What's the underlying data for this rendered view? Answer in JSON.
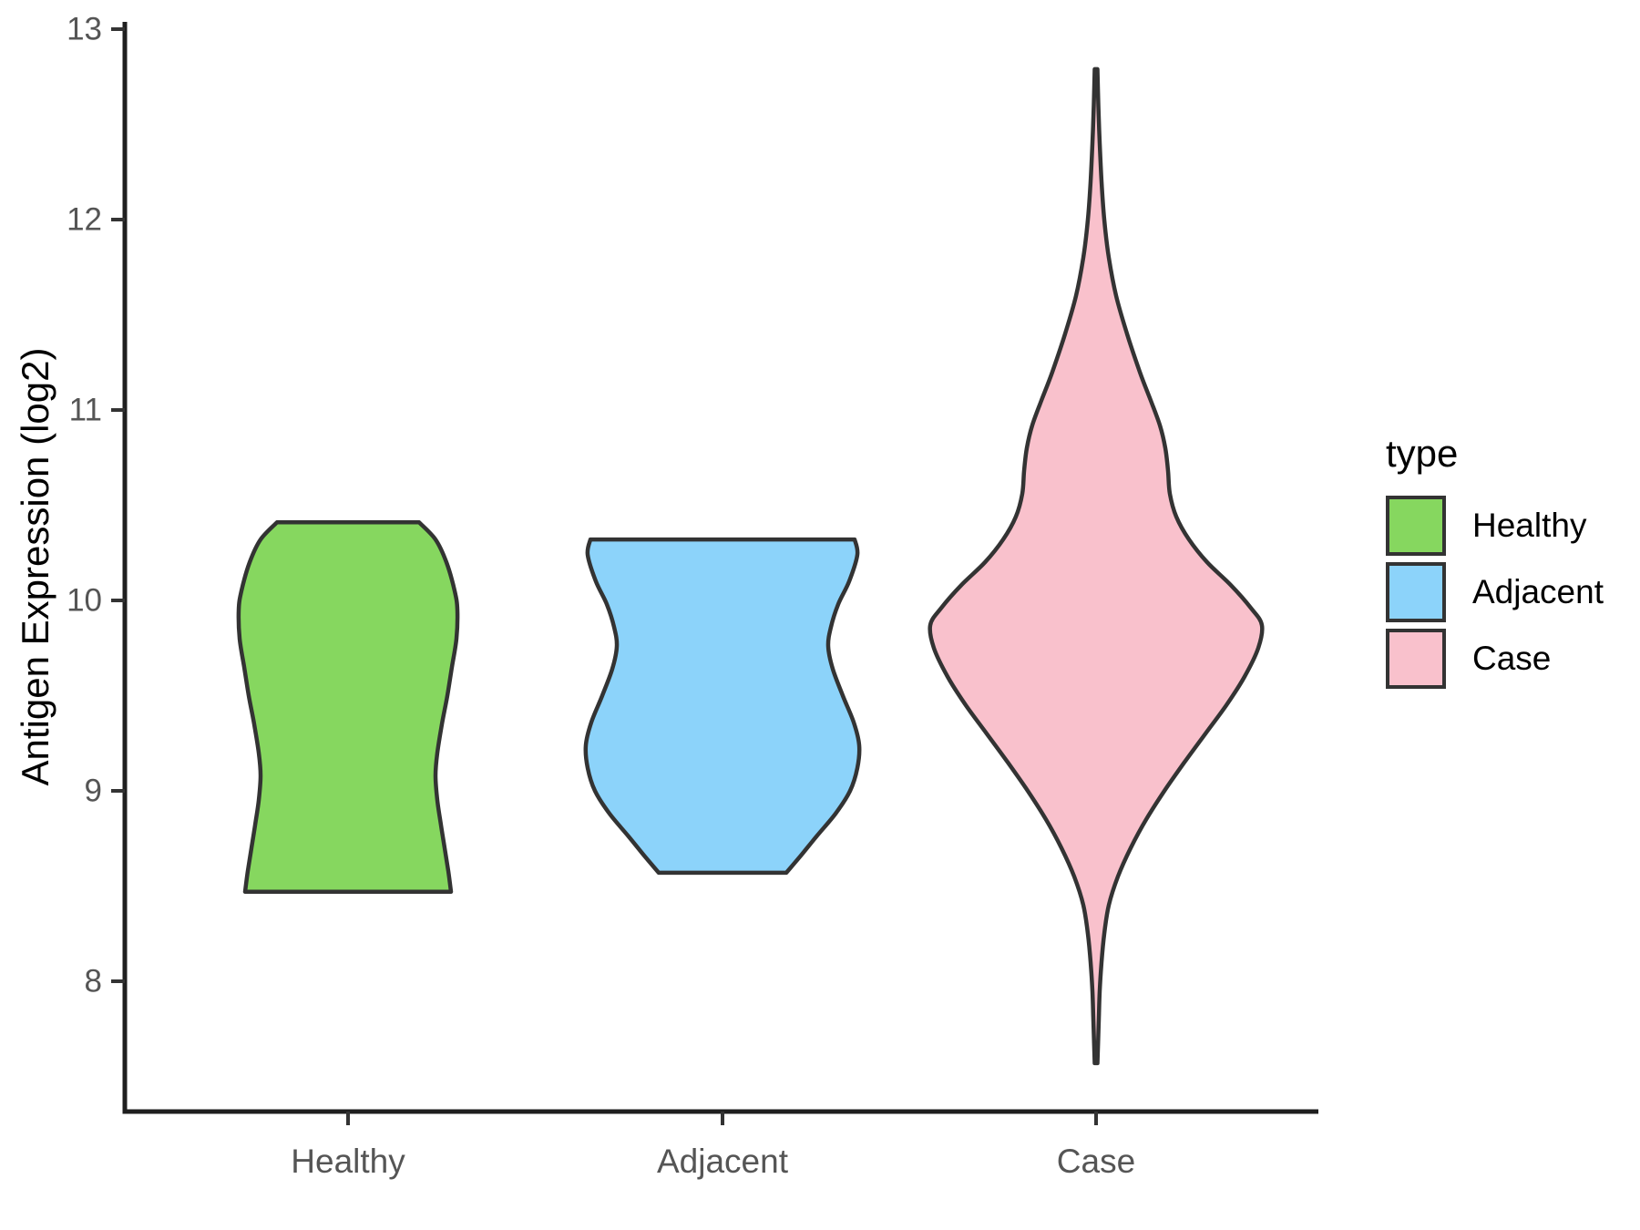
{
  "figure": {
    "background": "#ffffff"
  },
  "chart_data": {
    "type": "violin",
    "title": "",
    "xlabel": "",
    "ylabel": "Antigen Expression (log2)",
    "ylim": [
      7.3,
      13.05
    ],
    "yticks": [
      8,
      9,
      10,
      11,
      12,
      13
    ],
    "categories": [
      "Healthy",
      "Adjacent",
      "Case"
    ],
    "grid": false,
    "legend_position": "right",
    "legend_title": "type",
    "axis_color": "#1f1f1f",
    "tick_color": "#333333",
    "tick_label_color": "#555555",
    "outline_color": "#333333",
    "series": [
      {
        "name": "Healthy",
        "color": "#86D75F",
        "min": 8.47,
        "max": 10.41,
        "widest_at": 9.95,
        "profile": [
          [
            10.41,
            78
          ],
          [
            10.32,
            96
          ],
          [
            10.2,
            108
          ],
          [
            10.05,
            117
          ],
          [
            9.95,
            120
          ],
          [
            9.8,
            119
          ],
          [
            9.65,
            114
          ],
          [
            9.5,
            109
          ],
          [
            9.35,
            103
          ],
          [
            9.2,
            98
          ],
          [
            9.08,
            96
          ],
          [
            8.95,
            98
          ],
          [
            8.82,
            102
          ],
          [
            8.7,
            106
          ],
          [
            8.58,
            110
          ],
          [
            8.47,
            113
          ]
        ]
      },
      {
        "name": "Adjacent",
        "color": "#8CD3FA",
        "min": 8.57,
        "max": 10.32,
        "widest_at": 9.22,
        "profile": [
          [
            10.32,
            145
          ],
          [
            10.24,
            148
          ],
          [
            10.1,
            139
          ],
          [
            9.98,
            127
          ],
          [
            9.86,
            119
          ],
          [
            9.76,
            116
          ],
          [
            9.64,
            121
          ],
          [
            9.5,
            132
          ],
          [
            9.36,
            144
          ],
          [
            9.24,
            150
          ],
          [
            9.12,
            148
          ],
          [
            9.0,
            140
          ],
          [
            8.88,
            124
          ],
          [
            8.76,
            103
          ],
          [
            8.66,
            86
          ],
          [
            8.57,
            70
          ]
        ]
      },
      {
        "name": "Case",
        "color": "#F9C1CC",
        "min": 7.57,
        "max": 12.79,
        "widest_at": 9.87,
        "profile": [
          [
            12.79,
            1.5
          ],
          [
            12.6,
            2.5
          ],
          [
            12.4,
            4
          ],
          [
            12.2,
            6
          ],
          [
            12.0,
            9
          ],
          [
            11.8,
            14
          ],
          [
            11.6,
            22
          ],
          [
            11.4,
            34
          ],
          [
            11.2,
            48
          ],
          [
            11.05,
            60
          ],
          [
            10.92,
            70
          ],
          [
            10.8,
            76
          ],
          [
            10.68,
            79
          ],
          [
            10.56,
            81
          ],
          [
            10.44,
            88
          ],
          [
            10.32,
            102
          ],
          [
            10.2,
            122
          ],
          [
            10.08,
            148
          ],
          [
            9.96,
            170
          ],
          [
            9.87,
            182
          ],
          [
            9.75,
            178
          ],
          [
            9.6,
            163
          ],
          [
            9.45,
            143
          ],
          [
            9.3,
            120
          ],
          [
            9.15,
            97
          ],
          [
            9.0,
            75
          ],
          [
            8.85,
            55
          ],
          [
            8.7,
            38
          ],
          [
            8.55,
            24
          ],
          [
            8.4,
            14
          ],
          [
            8.25,
            9
          ],
          [
            8.1,
            6
          ],
          [
            7.95,
            4
          ],
          [
            7.8,
            3
          ],
          [
            7.57,
            1.5
          ]
        ]
      }
    ]
  }
}
